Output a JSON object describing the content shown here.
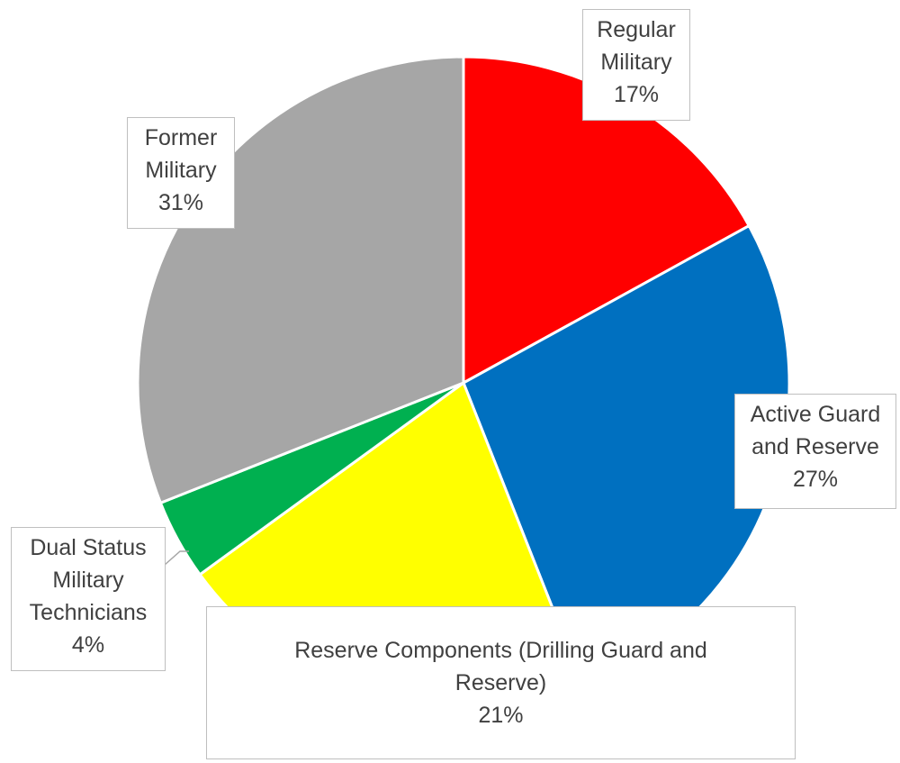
{
  "chart_data": {
    "type": "pie",
    "title": "",
    "categories": [
      "Regular Military",
      "Active Guard and Reserve",
      "Reserve Components (Drilling Guard and Reserve)",
      "Dual Status Military Technicians",
      "Former Military"
    ],
    "values": [
      17,
      27,
      21,
      4,
      31
    ],
    "percent_labels": [
      "17%",
      "27%",
      "21%",
      "4%",
      "31%"
    ],
    "colors": [
      "#ff0000",
      "#0070c0",
      "#ffff00",
      "#00b050",
      "#a6a6a6"
    ],
    "start_angle": "12 o'clock",
    "direction": "clockwise",
    "legend": "none",
    "data_labels": "outside, boxed"
  }
}
